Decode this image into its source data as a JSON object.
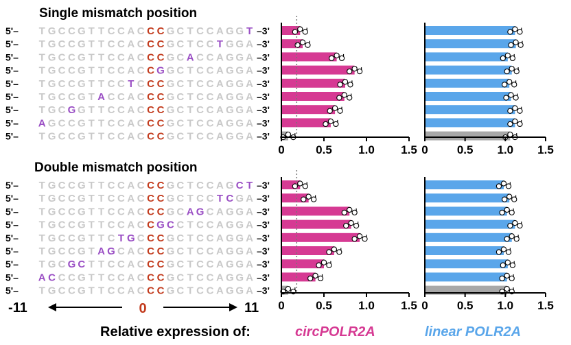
{
  "colors": {
    "unchanged": "#c9c9c9",
    "center": "#c23a1c",
    "mutated": "#9a4fc4",
    "circ_bar": "#d63a93",
    "linear_bar": "#5aa6ea",
    "control_bar": "#a8a8a8",
    "axis": "#000000"
  },
  "seq_prefix": "5'–",
  "seq_suffix": "–3'",
  "position_scale": {
    "left": "-11",
    "center": "0",
    "right": "11"
  },
  "bottom_label": {
    "prefix": "Relative expression of:",
    "circ": "circPOLR2A",
    "linear": "linear POLR2A"
  },
  "chart_data": [
    {
      "type": "bar",
      "panel": "single",
      "title": "Single mismatch position",
      "sequences": [
        "TGCCGTTCCACCCGCTCCAGGT",
        "TGCCGTTCCACCCGCTCCTGGA",
        "TGCCGTTCCACCCGCACCAGGA",
        "TGCCGTTCCACCGGCTCCAGGA",
        "TGCCGTTCCTCCCGCTCCAGGA",
        "TGCCGTACCACCCGCTCCAGGA",
        "TGCGGTTCCACCCGCTCCAGGA",
        "AGCCGTTCCACCCGCTCCAGGA",
        "TGCCGTTCCACCCGCTCCAGGA"
      ],
      "highlights": [
        [
          21
        ],
        [
          18
        ],
        [
          15
        ],
        [
          12
        ],
        [
          9
        ],
        [
          6
        ],
        [
          3
        ],
        [
          0
        ],
        []
      ],
      "circ": {
        "xlim": [
          0,
          1.5
        ],
        "ticks": [
          "0",
          "0.5",
          "1.0",
          "1.5"
        ],
        "values": [
          0.22,
          0.25,
          0.65,
          0.86,
          0.75,
          0.74,
          0.63,
          0.58,
          0.08
        ]
      },
      "linear": {
        "xlim": [
          0,
          1.5
        ],
        "ticks": [
          "0",
          "0.5",
          "1.0",
          "1.5"
        ],
        "values": [
          1.12,
          1.13,
          1.03,
          1.08,
          1.05,
          1.07,
          1.12,
          1.12,
          1.06
        ]
      }
    },
    {
      "type": "bar",
      "panel": "double",
      "title": "Double mismatch position",
      "sequences": [
        "TGCCGTTCCACCCGCTCCAGCT",
        "TGCCGTTCCACCCGCTCCTCGA",
        "TGCCGTTCCACCCGCAGCAGGA",
        "TGCCGTTCCACCGCCTCCAGGA",
        "TGCCGTTCTGCCCGCTCCAGGA",
        "TGCCGTAGCACCCGCTCCAGGA",
        "TGCGCTTCCACCCGCTCCAGGA",
        "ACCCGTTCCACCCGCTCCAGGA",
        "TGCCGTTCCACCCGCTCCAGGA"
      ],
      "highlights": [
        [
          20,
          21
        ],
        [
          18,
          19
        ],
        [
          15,
          16
        ],
        [
          12,
          13
        ],
        [
          8,
          9
        ],
        [
          6,
          7
        ],
        [
          3,
          4
        ],
        [
          0,
          1
        ],
        []
      ],
      "circ": {
        "xlim": [
          0,
          1.5
        ],
        "ticks": [
          "0",
          "0.5",
          "1.0",
          "1.5"
        ],
        "values": [
          0.22,
          0.32,
          0.8,
          0.82,
          0.92,
          0.62,
          0.5,
          0.4,
          0.08
        ]
      },
      "linear": {
        "xlim": [
          0,
          1.5
        ],
        "ticks": [
          "0",
          "0.5",
          "1.0",
          "1.5"
        ],
        "values": [
          0.98,
          1.05,
          1.02,
          1.12,
          1.08,
          0.98,
          1.03,
          1.02,
          1.02
        ]
      }
    }
  ]
}
